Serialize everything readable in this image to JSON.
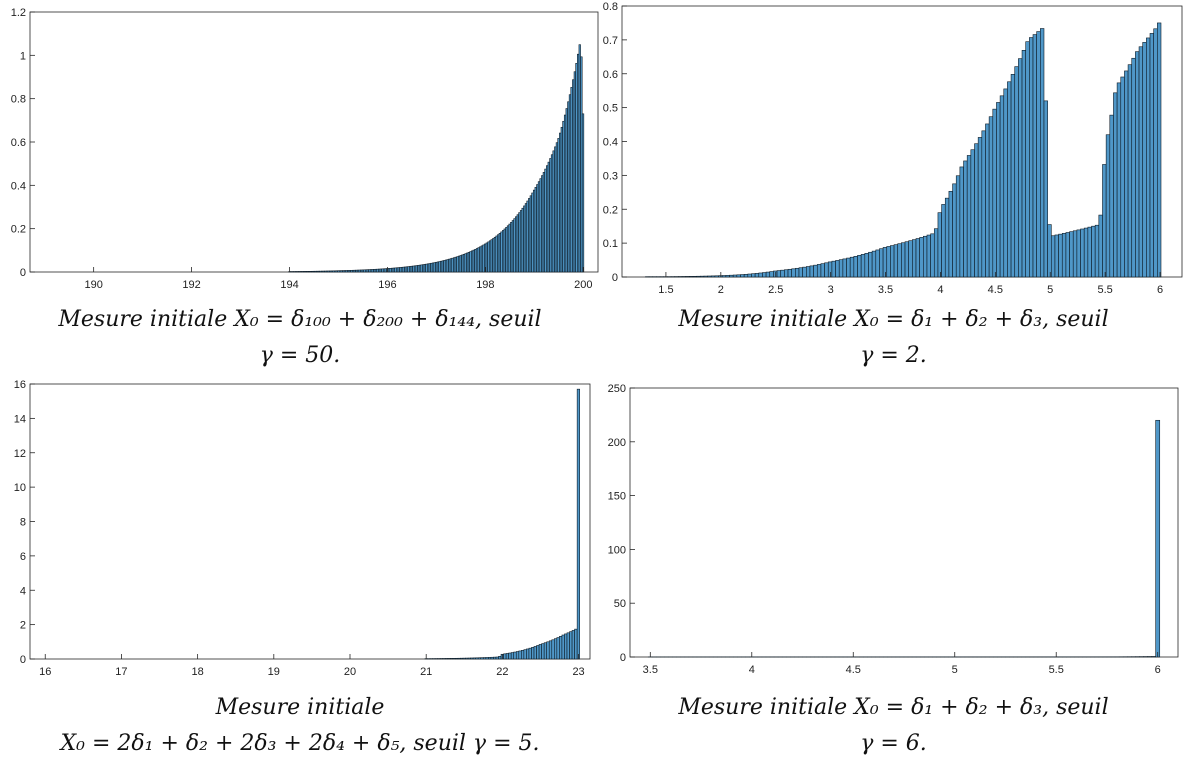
{
  "colors": {
    "bar_fill": "#4f97c8",
    "bar_edge": "#0d1b26",
    "axis": "#262626"
  },
  "chart_data": [
    {
      "type": "bar",
      "caption": [
        "Mesure initiale X₀ = δ₁₀₀ + δ₂₀₀ + δ₁₄₄, seuil",
        "γ = 50."
      ],
      "xlim": [
        188.7,
        200.3
      ],
      "ylim": [
        0,
        1.2
      ],
      "xticks": [
        "190",
        "192",
        "194",
        "196",
        "198",
        "200"
      ],
      "yticks": [
        "0",
        "0.2",
        "0.4",
        "0.6",
        "0.8",
        "1",
        "1.2"
      ],
      "bins": {
        "x_start": 194,
        "x_end": 200,
        "width": 0.0333,
        "values_at": {
          "194": 0.002,
          "195": 0.006,
          "196": 0.016,
          "197": 0.045,
          "198": 0.13,
          "199": 0.38,
          "199.5": 0.62,
          "199.85": 0.95,
          "199.95": 1.08,
          "200": 0.73
        }
      },
      "grid": false
    },
    {
      "type": "bar",
      "caption": [
        "Mesure initiale X₀ = δ₁ + δ₂ + δ₃, seuil",
        "γ = 2."
      ],
      "xlim": [
        1.1,
        6.2
      ],
      "ylim": [
        0,
        0.8
      ],
      "xticks": [
        "1.5",
        "2",
        "2.5",
        "3",
        "3.5",
        "4",
        "4.5",
        "5",
        "5.5",
        "6"
      ],
      "yticks": [
        "0",
        "0.1",
        "0.2",
        "0.3",
        "0.4",
        "0.5",
        "0.6",
        "0.7",
        "0.8"
      ],
      "bins": {
        "x_start": 1.33,
        "x_end": 6,
        "width": 0.0333,
        "values_at": {
          "1.5": 0.001,
          "2": 0.004,
          "2.5": 0.018,
          "3": 0.045,
          "3.5": 0.088,
          "3.95": 0.13,
          "4": 0.2,
          "4.2": 0.33,
          "4.5": 0.5,
          "4.8": 0.7,
          "4.95": 0.74,
          "5": 0.12,
          "5.45": 0.155,
          "5.5": 0.38,
          "5.6": 0.56,
          "5.8": 0.67,
          "6": 0.75
        }
      },
      "grid": false
    },
    {
      "type": "bar",
      "caption": [
        "Mesure initiale",
        "X₀ = 2δ₁ + δ₂ + 2δ₃ + 2δ₄ + δ₅, seuil γ = 5."
      ],
      "xlim": [
        15.8,
        23.15
      ],
      "ylim": [
        0,
        16
      ],
      "xticks": [
        "16",
        "17",
        "18",
        "19",
        "20",
        "21",
        "22",
        "23"
      ],
      "yticks": [
        "0",
        "2",
        "4",
        "6",
        "8",
        "10",
        "12",
        "14",
        "16"
      ],
      "bins": {
        "x_start": 21,
        "x_end": 23,
        "width": 0.0333,
        "values_at": {
          "21": 0.02,
          "21.5": 0.05,
          "21.95": 0.12,
          "22": 0.28,
          "22.5": 0.85,
          "22.8": 1.4,
          "22.97": 1.75,
          "23": 15.7
        }
      },
      "grid": false
    },
    {
      "type": "bar",
      "caption": [
        "Mesure initiale X₀ = δ₁ + δ₂ + δ₃, seuil",
        "γ = 6."
      ],
      "xlim": [
        3.4,
        6.1
      ],
      "ylim": [
        0,
        250
      ],
      "xticks": [
        "3.5",
        "4",
        "4.5",
        "5",
        "5.5",
        "6"
      ],
      "yticks": [
        "0",
        "50",
        "100",
        "150",
        "200",
        "250"
      ],
      "bins": {
        "x_start": 3.5,
        "x_end": 6,
        "width": 0.02,
        "values_at": {
          "3.5": 0.05,
          "5.8": 0.2,
          "5.98": 0.5,
          "6": 220
        }
      },
      "grid": false
    }
  ]
}
